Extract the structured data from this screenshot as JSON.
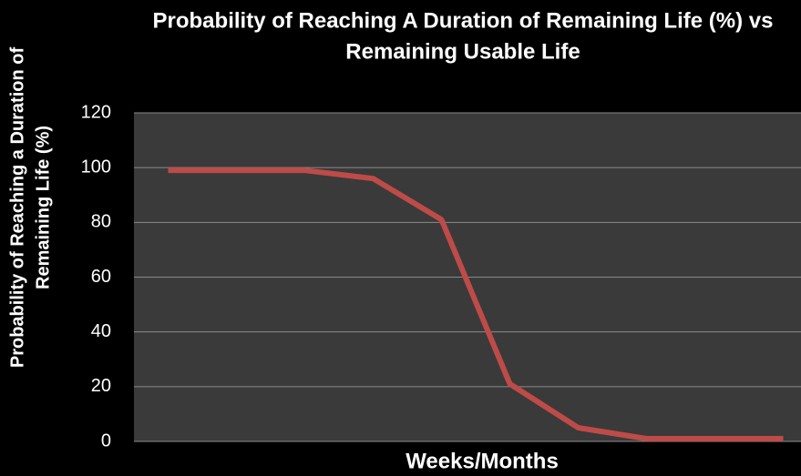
{
  "chart_data": {
    "type": "line",
    "title": [
      "Probability of Reaching A Duration of Remaining Life (%) vs",
      "Remaining Usable Life"
    ],
    "y_label": [
      "Probability of Reaching a Duration of",
      "Remaining Life  (%)"
    ],
    "x_label": "Weeks/Months",
    "categories": [
      null,
      null,
      null,
      null,
      null,
      null,
      null,
      null,
      null,
      null
    ],
    "series": [
      {
        "name": "Probability",
        "color": "#be4b48",
        "values": [
          99,
          99,
          99,
          96,
          81,
          21,
          5,
          1,
          1,
          1
        ]
      }
    ],
    "ylim": [
      0,
      120
    ],
    "yticks": [
      0,
      20,
      40,
      60,
      80,
      100,
      120
    ],
    "grid": true
  }
}
